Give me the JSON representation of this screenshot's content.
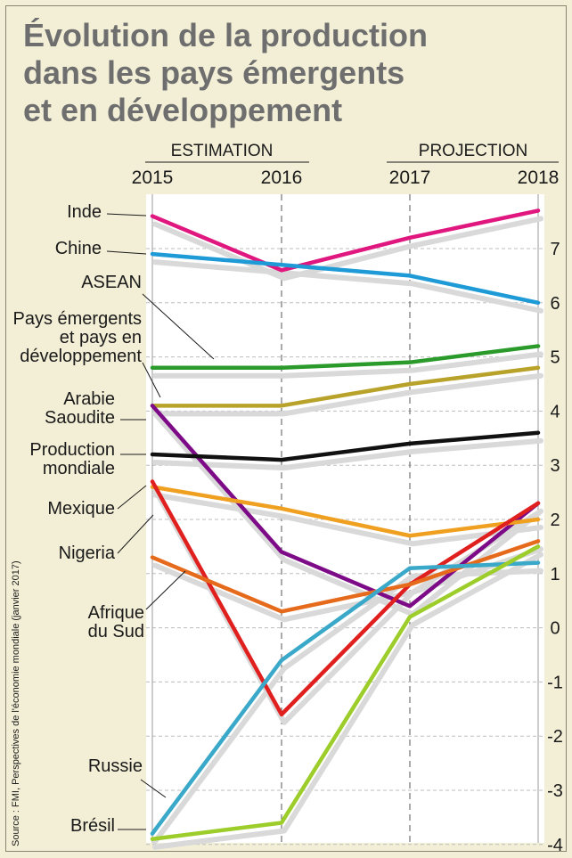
{
  "title_lines": [
    "Évolution de la production",
    "dans les pays émergents",
    "et en développement"
  ],
  "headers": {
    "estimation": "ESTIMATION",
    "projection": "PROJECTION"
  },
  "source": "Source : FMI, Perspectives de l'économie mondiale (janvier 2017)",
  "chart_data": {
    "type": "line",
    "title": "Évolution de la production dans les pays émergents et en développement",
    "x": [
      "2015",
      "2016",
      "2017",
      "2018"
    ],
    "ylim": [
      -4.1,
      7.7
    ],
    "yticks": [
      "7",
      "6",
      "5",
      "4",
      "3",
      "2",
      "1",
      "0",
      "-1",
      "-2",
      "-3",
      "-4"
    ],
    "grid": true,
    "series": [
      {
        "name": "Inde",
        "color": "#e0177f",
        "values": [
          7.6,
          6.6,
          7.2,
          7.7
        ]
      },
      {
        "name": "Chine",
        "color": "#1e9ad6",
        "values": [
          6.9,
          6.7,
          6.5,
          6.0
        ]
      },
      {
        "name": "ASEAN",
        "color": "#2a9a2a",
        "values": [
          4.8,
          4.8,
          4.9,
          5.2
        ]
      },
      {
        "name": "Pays émergents et pays en développement",
        "color": "#b8a22a",
        "values": [
          4.1,
          4.1,
          4.5,
          4.8
        ]
      },
      {
        "name": "Arabie Saoudite",
        "color": "#7d0a87",
        "values": [
          4.1,
          1.4,
          0.4,
          2.3
        ]
      },
      {
        "name": "Production mondiale",
        "color": "#111111",
        "values": [
          3.2,
          3.1,
          3.4,
          3.6
        ]
      },
      {
        "name": "Mexique",
        "color": "#f0a020",
        "values": [
          2.6,
          2.2,
          1.7,
          2.0
        ]
      },
      {
        "name": "Nigeria",
        "color": "#e0201e",
        "values": [
          2.7,
          -1.6,
          0.8,
          2.3
        ]
      },
      {
        "name": "Afrique du Sud",
        "color": "#e66a1c",
        "values": [
          1.3,
          0.3,
          0.8,
          1.6
        ]
      },
      {
        "name": "Russie",
        "color": "#3aa8c8",
        "values": [
          -3.8,
          -0.6,
          1.1,
          1.2
        ]
      },
      {
        "name": "Brésil",
        "color": "#9ccd2a",
        "values": [
          -3.9,
          -3.6,
          0.2,
          1.5
        ]
      }
    ]
  }
}
